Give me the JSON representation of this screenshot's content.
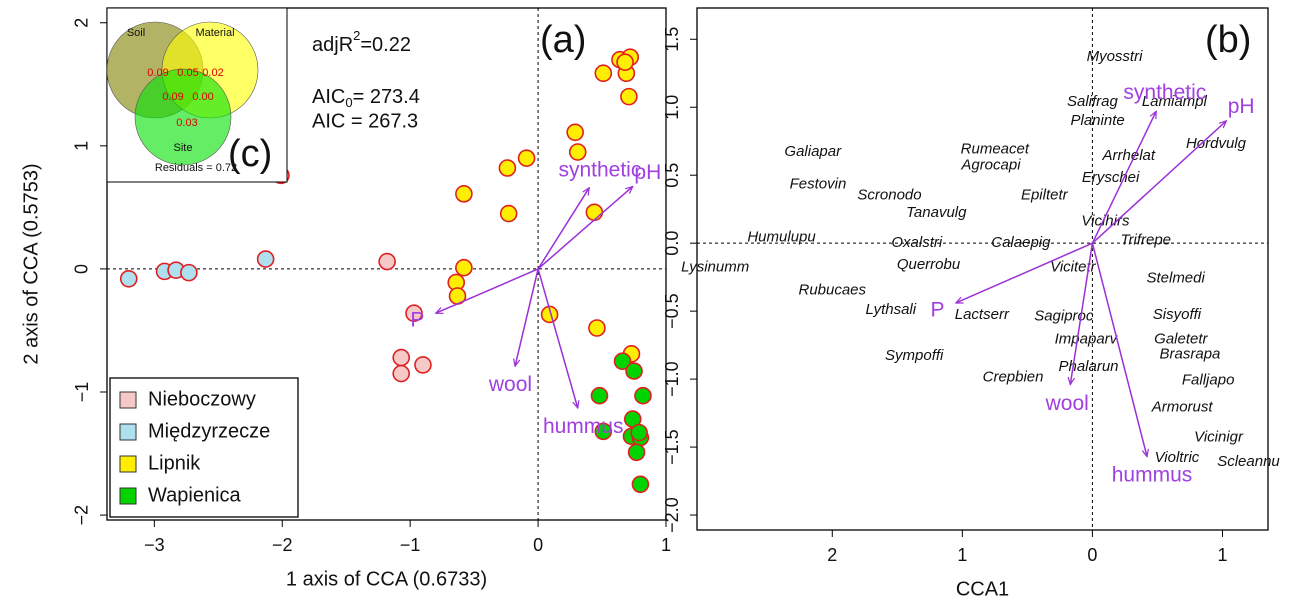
{
  "chart_data": [
    {
      "type": "scatter",
      "panel_label": "(a)",
      "x_label": "1 axis of CCA (0.6733)",
      "y_label": "2 axis of CCA (0.5753)",
      "xlim": [
        -3.37,
        1.0
      ],
      "ylim": [
        -2.04,
        2.12
      ],
      "xticks": [
        {
          "value": -3,
          "label": "−3"
        },
        {
          "value": -2,
          "label": "−2"
        },
        {
          "value": -1,
          "label": "−1"
        },
        0,
        1
      ],
      "yticks": [
        {
          "value": -2,
          "label": "−2"
        },
        {
          "value": -1,
          "label": "−1"
        },
        0,
        1,
        2
      ],
      "legend_position": "bottom-left",
      "marker_edge_color": "#e02020",
      "arrow_color": "#9b30d8",
      "series": [
        {
          "name": "Nieboczowy",
          "color": "#f6c9c9",
          "x": [
            -1.18,
            -0.97,
            -1.07,
            -1.07,
            -0.9
          ],
          "y": [
            0.06,
            -0.36,
            -0.72,
            -0.85,
            -0.78
          ]
        },
        {
          "name": "Międzyrzecze",
          "color": "#aee0ef",
          "x": [
            -3.2,
            -2.92,
            -2.83,
            -2.73,
            -2.13,
            -2.01
          ],
          "y": [
            -0.08,
            -0.02,
            -0.01,
            -0.03,
            0.08,
            0.76
          ]
        },
        {
          "name": "Lipnik",
          "color": "#ffee00",
          "x": [
            -0.58,
            -0.58,
            -0.64,
            -0.63,
            -0.24,
            -0.09,
            -0.23,
            0.09,
            0.29,
            0.31,
            0.44,
            0.46,
            0.51,
            0.64,
            0.69,
            0.72,
            0.68,
            0.71,
            0.73
          ],
          "y": [
            0.61,
            0.01,
            -0.11,
            -0.22,
            0.82,
            0.9,
            0.45,
            -0.37,
            1.11,
            0.95,
            0.46,
            -0.48,
            1.59,
            1.7,
            1.59,
            1.72,
            1.68,
            1.4,
            -0.69
          ]
        },
        {
          "name": "Wapienica",
          "color": "#00d400",
          "x": [
            0.48,
            0.51,
            0.66,
            0.75,
            0.82,
            0.74,
            0.73,
            0.8,
            0.77,
            0.8,
            0.79
          ],
          "y": [
            -1.03,
            -1.32,
            -0.75,
            -0.83,
            -1.03,
            -1.22,
            -1.36,
            -1.37,
            -1.49,
            -1.75,
            -1.33
          ]
        }
      ],
      "arrows": [
        {
          "name": "synthetic",
          "x": 0.4,
          "y": 0.66
        },
        {
          "name": "pH",
          "x": 0.74,
          "y": 0.67
        },
        {
          "name": "P",
          "x": -0.8,
          "y": -0.36
        },
        {
          "name": "wool",
          "x": -0.18,
          "y": -0.79
        },
        {
          "name": "hummus",
          "x": 0.31,
          "y": -1.13
        }
      ],
      "r2_label": {
        "base": "adjR",
        "sup": "2",
        "tail": "=0.22"
      },
      "aic0_label": {
        "base": "AIC",
        "sub": "0",
        "tail": "= 273.4"
      },
      "aic_label": "AIC = 267.3"
    },
    {
      "type": "biplot",
      "panel_label": "(b)",
      "x_label": "CCA1",
      "xlim": [
        -3.04,
        1.35
      ],
      "ylim": [
        -2.11,
        1.73
      ],
      "xticks": [
        {
          "value": -2,
          "label": "2"
        },
        {
          "value": -1,
          "label": "1"
        },
        0,
        1
      ],
      "yticks": [
        {
          "value": -2,
          "label": "−2.0"
        },
        {
          "value": -1.5,
          "label": "−1.5"
        },
        {
          "value": -1,
          "label": "−1.0"
        },
        {
          "value": -0.5,
          "label": "−0.5"
        },
        {
          "value": 0,
          "label": "0.0"
        },
        0.5,
        {
          "value": 1,
          "label": "1.0"
        },
        1.5
      ],
      "arrow_color": "#9b30d8",
      "species": [
        {
          "name": "Myosstri",
          "x": 0.17,
          "y": 1.37
        },
        {
          "name": "Salifrag",
          "x": 0.0,
          "y": 1.04
        },
        {
          "name": "Lamiampl",
          "x": 0.63,
          "y": 1.04
        },
        {
          "name": "Planinte",
          "x": 0.04,
          "y": 0.9
        },
        {
          "name": "Hordvulg",
          "x": 0.95,
          "y": 0.73
        },
        {
          "name": "Galiapar",
          "x": -2.15,
          "y": 0.67
        },
        {
          "name": "Rumeacet",
          "x": -0.75,
          "y": 0.69
        },
        {
          "name": "Agrocapi",
          "x": -0.78,
          "y": 0.57
        },
        {
          "name": "Arrhelat",
          "x": 0.28,
          "y": 0.64
        },
        {
          "name": "Festovin",
          "x": -2.11,
          "y": 0.43
        },
        {
          "name": "Scronodo",
          "x": -1.56,
          "y": 0.35
        },
        {
          "name": "Eryschei",
          "x": 0.14,
          "y": 0.48
        },
        {
          "name": "Epiltetr",
          "x": -0.37,
          "y": 0.35
        },
        {
          "name": "Tanavulg",
          "x": -1.2,
          "y": 0.22
        },
        {
          "name": "Vicihirs",
          "x": 0.1,
          "y": 0.16
        },
        {
          "name": "Humulupu",
          "x": -2.39,
          "y": 0.04
        },
        {
          "name": "Oxalstri",
          "x": -1.35,
          "y": 0.0
        },
        {
          "name": "Calaepig",
          "x": -0.55,
          "y": 0.0
        },
        {
          "name": "Trifrepe",
          "x": 0.41,
          "y": 0.02
        },
        {
          "name": "Lysinumm",
          "x": -2.9,
          "y": -0.18
        },
        {
          "name": "Querrobu",
          "x": -1.26,
          "y": -0.16
        },
        {
          "name": "Vicitetr",
          "x": -0.15,
          "y": -0.18
        },
        {
          "name": "Stelmedi",
          "x": 0.64,
          "y": -0.26
        },
        {
          "name": "Rubucaes",
          "x": -2.0,
          "y": -0.35
        },
        {
          "name": "Lythsali",
          "x": -1.55,
          "y": -0.49
        },
        {
          "name": "Lactserr",
          "x": -0.85,
          "y": -0.53
        },
        {
          "name": "Sagiproc",
          "x": -0.22,
          "y": -0.54
        },
        {
          "name": "Sisyoffi",
          "x": 0.65,
          "y": -0.53
        },
        {
          "name": "Impaparv",
          "x": -0.05,
          "y": -0.71
        },
        {
          "name": "Galetetr",
          "x": 0.68,
          "y": -0.71
        },
        {
          "name": "Brasrapa",
          "x": 0.75,
          "y": -0.82
        },
        {
          "name": "Sympoffi",
          "x": -1.37,
          "y": -0.83
        },
        {
          "name": "Phalarun",
          "x": -0.03,
          "y": -0.91
        },
        {
          "name": "Crepbien",
          "x": -0.61,
          "y": -0.99
        },
        {
          "name": "Falljapo",
          "x": 0.89,
          "y": -1.01
        },
        {
          "name": "Armorust",
          "x": 0.69,
          "y": -1.21
        },
        {
          "name": "Vicinigr",
          "x": 0.97,
          "y": -1.43
        },
        {
          "name": "Violtric",
          "x": 0.65,
          "y": -1.58
        },
        {
          "name": "Scleannu",
          "x": 1.2,
          "y": -1.61
        }
      ],
      "arrows": [
        {
          "name": "synthetic",
          "x": 0.49,
          "y": 0.97
        },
        {
          "name": "pH",
          "x": 1.03,
          "y": 0.9
        },
        {
          "name": "P",
          "x": -1.05,
          "y": -0.44
        },
        {
          "name": "wool",
          "x": -0.17,
          "y": -1.04
        },
        {
          "name": "hummus",
          "x": 0.42,
          "y": -1.57
        }
      ]
    },
    {
      "type": "venn",
      "panel_label": "(c)",
      "sets": [
        "Soil",
        "Material",
        "Site"
      ],
      "values": [
        0.09,
        0.05,
        0.02,
        0.09,
        0,
        0.03
      ],
      "value_labels": [
        "0.09",
        "0.05",
        "0.02",
        "0.09",
        "0.00",
        "0.03"
      ],
      "residuals_label": "Residuals = 0.72"
    }
  ]
}
